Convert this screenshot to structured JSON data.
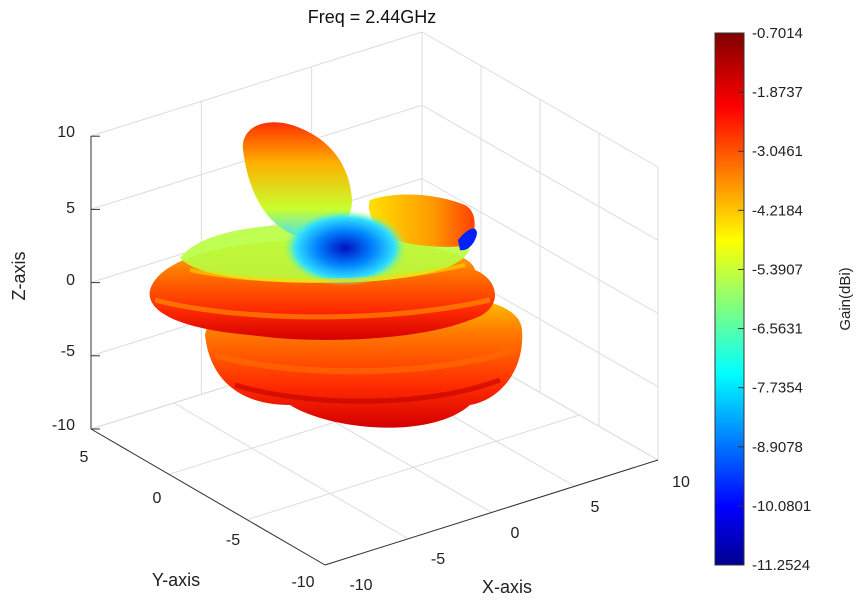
{
  "chart_data": {
    "type": "3d-radiation-pattern",
    "title": "Freq = 2.44GHz",
    "xlabel": "X-axis",
    "ylabel": "Y-axis",
    "zlabel": "Z-axis",
    "xlim": [
      -10,
      10
    ],
    "ylim": [
      -10,
      5
    ],
    "zlim": [
      -10,
      10
    ],
    "xticks": [
      "-10",
      "-5",
      "0",
      "5",
      "10"
    ],
    "yticks": [
      "-10",
      "-5",
      "0",
      "5"
    ],
    "zticks": [
      "-10",
      "-5",
      "0",
      "5",
      "10"
    ],
    "grid": true,
    "colormap": "jet",
    "colorbar": {
      "label": "Gain(dBi)",
      "min": -11.2524,
      "max": -0.7014,
      "ticks": [
        "-0.7014",
        "-1.8737",
        "-3.0461",
        "-4.2184",
        "-5.3907",
        "-6.5631",
        "-7.7354",
        "-8.9078",
        "-10.0801",
        "-11.2524"
      ]
    }
  }
}
